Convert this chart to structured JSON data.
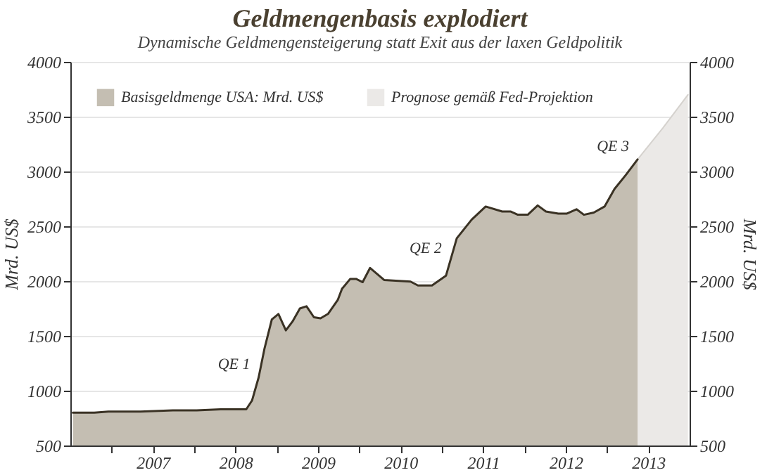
{
  "chart_data": {
    "type": "area",
    "title": "Geldmengenbasis explodiert",
    "subtitle": "Dynamische Geldmengensteigerung statt Exit aus der laxen Geldpolitik",
    "ylabel": "Mrd. US$",
    "y2label": "Mrd. US$",
    "series": [
      {
        "name": "Basisgeldmenge USA: Mrd. US$",
        "color": "#c4beb2",
        "x": [
          2006.53,
          2006.79,
          2006.96,
          2007.35,
          2007.74,
          2008.03,
          2008.32,
          2008.63,
          2008.7,
          2008.78,
          2008.85,
          2008.94,
          2009.02,
          2009.11,
          2009.19,
          2009.28,
          2009.36,
          2009.45,
          2009.53,
          2009.62,
          2009.74,
          2009.79,
          2009.89,
          2009.96,
          2010.04,
          2010.13,
          2010.3,
          2010.62,
          2010.71,
          2010.88,
          2011.05,
          2011.18,
          2011.36,
          2011.53,
          2011.73,
          2011.83,
          2011.92,
          2012.04,
          2012.16,
          2012.26,
          2012.41,
          2012.51,
          2012.63,
          2012.72,
          2012.84,
          2012.97,
          2013.09,
          2013.23,
          2013.37
        ],
        "values": [
          800,
          800,
          810,
          810,
          820,
          820,
          830,
          830,
          910,
          1120,
          1380,
          1650,
          1700,
          1550,
          1630,
          1750,
          1770,
          1670,
          1660,
          1700,
          1830,
          1930,
          2020,
          2020,
          1990,
          2120,
          2010,
          1995,
          1960,
          1960,
          2050,
          2390,
          2560,
          2680,
          2635,
          2635,
          2605,
          2605,
          2690,
          2635,
          2615,
          2615,
          2655,
          2605,
          2625,
          2680,
          2840,
          2970,
          3110
        ]
      },
      {
        "name": "Prognose gemäß Fed-Projektion",
        "color": "#ebe9e7",
        "x": [
          2013.37,
          2013.68,
          2013.98
        ],
        "values": [
          3110,
          3400,
          3700
        ]
      }
    ],
    "annotations": [
      {
        "text": "QE 1",
        "x": 2008.78,
        "y": 1120
      },
      {
        "text": "QE 2",
        "x": 2011.1,
        "y": 2180
      },
      {
        "text": "QE 3",
        "x": 2013.37,
        "y": 3110
      }
    ],
    "xlim": [
      2006.5,
      2014.0
    ],
    "xticks": [
      {
        "value": 2007,
        "label": null
      },
      {
        "value": 2007.5,
        "label": "2007"
      },
      {
        "value": 2008,
        "label": null
      },
      {
        "value": 2008.5,
        "label": "2008"
      },
      {
        "value": 2009,
        "label": null
      },
      {
        "value": 2009.5,
        "label": "2009"
      },
      {
        "value": 2010,
        "label": null
      },
      {
        "value": 2010.5,
        "label": "2010"
      },
      {
        "value": 2011,
        "label": null
      },
      {
        "value": 2011.5,
        "label": "2011"
      },
      {
        "value": 2012,
        "label": null
      },
      {
        "value": 2012.5,
        "label": "2012"
      },
      {
        "value": 2013,
        "label": null
      },
      {
        "value": 2013.5,
        "label": "2013"
      }
    ],
    "ylim": [
      500,
      4000
    ],
    "yticks": [
      500,
      1000,
      1500,
      2000,
      2500,
      3000,
      3500,
      4000
    ],
    "y2lim": [
      500,
      4000
    ],
    "y2ticks": [
      500,
      1000,
      1500,
      2000,
      2500,
      3000,
      3500,
      4000
    ],
    "grid": "y",
    "legend": "top left"
  }
}
